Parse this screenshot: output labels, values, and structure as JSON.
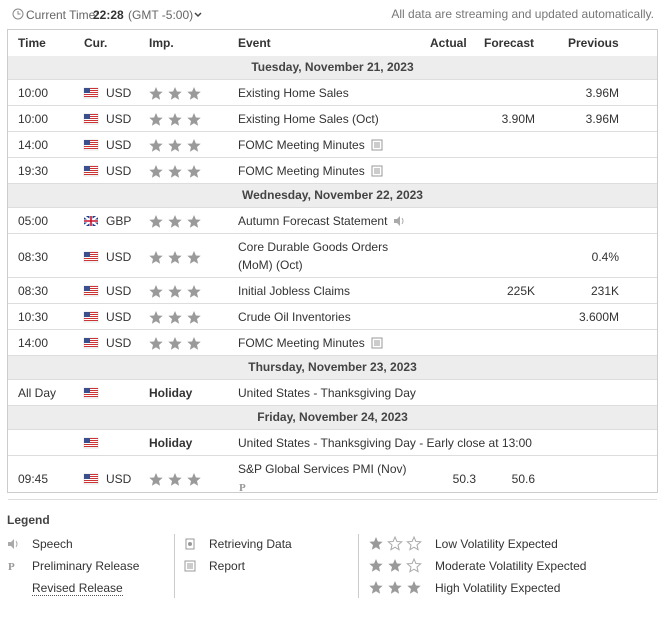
{
  "header": {
    "current_time_label": "Current Time:",
    "time": "22:28",
    "timezone": "(GMT -5:00)",
    "notice": "All data are streaming and updated automatically."
  },
  "table": {
    "columns": [
      "Time",
      "Cur.",
      "Imp.",
      "Event",
      "Actual",
      "Forecast",
      "Previous"
    ],
    "groups": [
      {
        "date": "Tuesday, November 21, 2023",
        "rows": [
          {
            "time": "10:00",
            "currency": "USD",
            "event": "Existing Home Sales",
            "previous": "3.96M"
          },
          {
            "time": "10:00",
            "currency": "USD",
            "event": "Existing Home Sales (Oct)",
            "forecast": "3.90M",
            "previous": "3.96M"
          },
          {
            "time": "14:00",
            "currency": "USD",
            "event": "FOMC Meeting Minutes"
          },
          {
            "time": "19:30",
            "currency": "USD",
            "event": "FOMC Meeting Minutes"
          }
        ]
      },
      {
        "date": "Wednesday, November 22, 2023",
        "rows": [
          {
            "time": "05:00",
            "currency": "GBP",
            "event": "Autumn Forecast Statement"
          },
          {
            "time": "08:30",
            "currency": "USD",
            "event": "Core Durable Goods Orders (MoM) (Oct)",
            "previous": "0.4%"
          },
          {
            "time": "08:30",
            "currency": "USD",
            "event": "Initial Jobless Claims",
            "forecast": "225K",
            "previous": "231K"
          },
          {
            "time": "10:30",
            "currency": "USD",
            "event": "Crude Oil Inventories",
            "previous": "3.600M"
          },
          {
            "time": "14:00",
            "currency": "USD",
            "event": "FOMC Meeting Minutes"
          }
        ]
      },
      {
        "date": "Thursday, November 23, 2023",
        "rows": [
          {
            "time": "All Day",
            "importance": "Holiday",
            "event": "United States - Thanksgiving Day"
          }
        ]
      },
      {
        "date": "Friday, November 24, 2023",
        "rows": [
          {
            "importance": "Holiday",
            "event": "United States - Thanksgiving Day - Early close at 13:00"
          },
          {
            "time": "09:45",
            "currency": "USD",
            "event": "S&P Global Services PMI (Nov)",
            "actual": "50.3",
            "forecast": "50.6"
          }
        ]
      }
    ]
  },
  "legend": {
    "title": "Legend",
    "events": [
      "Speech",
      "Preliminary Release",
      "Revised Release"
    ],
    "data": [
      "Retrieving Data",
      "Report"
    ],
    "volatility": [
      "Low Volatility Expected",
      "Moderate Volatility Expected",
      "High Volatility Expected"
    ]
  }
}
